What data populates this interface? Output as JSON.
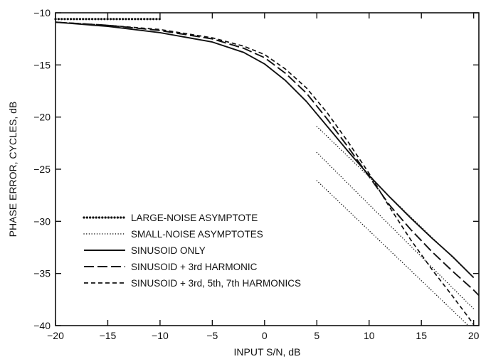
{
  "chart_data": {
    "type": "line",
    "title": "",
    "xlabel": "INPUT S/N, dB",
    "ylabel": "PHASE ERROR, CYCLES, dB",
    "xlim": [
      -20,
      20.5
    ],
    "ylim": [
      -40,
      -10
    ],
    "xticks": [
      -20,
      -15,
      -10,
      -5,
      0,
      5,
      10,
      15,
      20
    ],
    "yticks": [
      -10,
      -15,
      -20,
      -25,
      -30,
      -35,
      -40
    ],
    "grid": false,
    "legend_position": "bottom-left",
    "series": [
      {
        "name": "LARGE-NOISE ASYMPTOTE",
        "style": "dense-dotted",
        "segments": [
          [
            [
              -20,
              -10.6
            ],
            [
              -10,
              -10.6
            ]
          ]
        ]
      },
      {
        "name": "SMALL-NOISE ASYMPTOTES",
        "style": "dotted",
        "segments": [
          [
            [
              5,
              -20.9
            ],
            [
              20,
              -35.4
            ]
          ],
          [
            [
              5,
              -23.4
            ],
            [
              20,
              -38.4
            ]
          ],
          [
            [
              5,
              -26.1
            ],
            [
              19.5,
              -40
            ]
          ]
        ]
      },
      {
        "name": "SINUSOID ONLY",
        "style": "solid",
        "segments": [
          [
            [
              -20,
              -10.9
            ],
            [
              -15,
              -11.3
            ],
            [
              -10,
              -11.9
            ],
            [
              -5,
              -12.8
            ],
            [
              -2,
              -13.8
            ],
            [
              0,
              -14.9
            ],
            [
              2,
              -16.5
            ],
            [
              4,
              -18.5
            ],
            [
              6,
              -20.9
            ],
            [
              8,
              -23.3
            ],
            [
              10,
              -25.6
            ],
            [
              12,
              -27.7
            ],
            [
              14,
              -29.7
            ],
            [
              16,
              -31.6
            ],
            [
              18,
              -33.4
            ],
            [
              20,
              -35.4
            ]
          ]
        ]
      },
      {
        "name": "SINUSOID + 3rd HARMONIC",
        "style": "long-dash",
        "segments": [
          [
            [
              -20,
              -10.9
            ],
            [
              -15,
              -11.2
            ],
            [
              -10,
              -11.7
            ],
            [
              -5,
              -12.5
            ],
            [
              -2,
              -13.4
            ],
            [
              0,
              -14.3
            ],
            [
              2,
              -15.8
            ],
            [
              4,
              -17.7
            ],
            [
              6,
              -20.2
            ],
            [
              8,
              -22.9
            ],
            [
              10,
              -25.7
            ],
            [
              12,
              -28.5
            ],
            [
              14,
              -30.8
            ],
            [
              16,
              -32.9
            ],
            [
              18,
              -34.8
            ],
            [
              20,
              -36.6
            ],
            [
              20.5,
              -37.1
            ]
          ]
        ]
      },
      {
        "name": "SINUSOID + 3rd, 5th, 7th HARMONICS",
        "style": "short-dash",
        "segments": [
          [
            [
              -20,
              -10.9
            ],
            [
              -15,
              -11.2
            ],
            [
              -10,
              -11.6
            ],
            [
              -5,
              -12.4
            ],
            [
              -2,
              -13.2
            ],
            [
              0,
              -14.0
            ],
            [
              2,
              -15.4
            ],
            [
              4,
              -17.2
            ],
            [
              6,
              -19.6
            ],
            [
              8,
              -22.4
            ],
            [
              10,
              -25.4
            ],
            [
              12,
              -28.7
            ],
            [
              14,
              -31.8
            ],
            [
              16,
              -34.6
            ],
            [
              18,
              -37.2
            ],
            [
              19.5,
              -39.2
            ],
            [
              20,
              -39.9
            ]
          ]
        ]
      }
    ]
  }
}
